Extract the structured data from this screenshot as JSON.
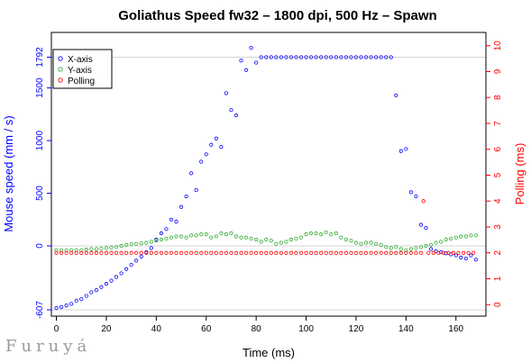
{
  "watermark": "Furuyá",
  "chart_data": {
    "type": "scatter",
    "title": "Goliathus Speed fw32 – 1800 dpi, 500 Hz – Spawn",
    "xlabel": "Time (ms)",
    "ylabel": "Mouse speed (mm / s)",
    "y2label": "Polling (ms)",
    "xlim": [
      -2,
      172
    ],
    "ylim": [
      -607,
      1950
    ],
    "y2lim": [
      -0.2,
      10.2
    ],
    "x_ticks": [
      0,
      20,
      40,
      60,
      80,
      100,
      120,
      140,
      160
    ],
    "y_ticks": [
      -607,
      0,
      500,
      1000,
      1500,
      1792
    ],
    "y2_ticks": [
      0,
      1,
      2,
      3,
      4,
      5,
      6,
      7,
      8,
      9,
      10
    ],
    "reference_lines_y": [
      -607,
      0,
      1792
    ],
    "grid": false,
    "legend_position": "top-left",
    "colors": {
      "x_axis": "#0000ff",
      "y_axis": "#33aa33",
      "polling": "#ff0000",
      "left_axis": "#0000ff",
      "right_axis": "#ff0000"
    },
    "series": [
      {
        "name": "X-axis",
        "axis": "left",
        "x": [
          0,
          2,
          4,
          6,
          8,
          10,
          12,
          14,
          16,
          18,
          20,
          22,
          24,
          26,
          28,
          30,
          32,
          34,
          36,
          38,
          40,
          42,
          44,
          46,
          48,
          50,
          52,
          54,
          56,
          58,
          60,
          62,
          64,
          66,
          68,
          70,
          72,
          74,
          76,
          78,
          80,
          82,
          84,
          86,
          88,
          90,
          92,
          94,
          96,
          98,
          100,
          102,
          104,
          106,
          108,
          110,
          112,
          114,
          116,
          118,
          120,
          122,
          124,
          126,
          128,
          130,
          132,
          134,
          136,
          138,
          140,
          142,
          144,
          146,
          148,
          150,
          152,
          154,
          156,
          158,
          160,
          162,
          164,
          166,
          168
        ],
        "y": [
          -590,
          -580,
          -565,
          -550,
          -520,
          -505,
          -475,
          -440,
          -420,
          -390,
          -360,
          -330,
          -295,
          -260,
          -220,
          -180,
          -140,
          -100,
          -60,
          -20,
          60,
          120,
          160,
          250,
          230,
          370,
          470,
          690,
          530,
          800,
          870,
          960,
          1020,
          940,
          1450,
          1290,
          1240,
          1760,
          1670,
          1880,
          1740,
          1792,
          1792,
          1792,
          1792,
          1792,
          1792,
          1792,
          1792,
          1792,
          1792,
          1792,
          1792,
          1792,
          1792,
          1792,
          1792,
          1792,
          1792,
          1792,
          1792,
          1792,
          1792,
          1792,
          1792,
          1792,
          1792,
          1792,
          1430,
          900,
          920,
          510,
          470,
          200,
          170,
          -30,
          -50,
          -60,
          -70,
          -80,
          -90,
          -110,
          -120,
          -90,
          -130
        ]
      },
      {
        "name": "Y-axis",
        "axis": "left",
        "x": [
          0,
          2,
          4,
          6,
          8,
          10,
          12,
          14,
          16,
          18,
          20,
          22,
          24,
          26,
          28,
          30,
          32,
          34,
          36,
          38,
          40,
          42,
          44,
          46,
          48,
          50,
          52,
          54,
          56,
          58,
          60,
          62,
          64,
          66,
          68,
          70,
          72,
          74,
          76,
          78,
          80,
          82,
          84,
          86,
          88,
          90,
          92,
          94,
          96,
          98,
          100,
          102,
          104,
          106,
          108,
          110,
          112,
          114,
          116,
          118,
          120,
          122,
          124,
          126,
          128,
          130,
          132,
          134,
          136,
          138,
          140,
          142,
          144,
          146,
          148,
          150,
          152,
          154,
          156,
          158,
          160,
          162,
          164,
          166,
          168
        ],
        "y": [
          -40,
          -40,
          -40,
          -40,
          -40,
          -40,
          -35,
          -30,
          -30,
          -25,
          -20,
          -15,
          -10,
          0,
          10,
          15,
          20,
          25,
          30,
          40,
          50,
          60,
          70,
          80,
          90,
          90,
          80,
          100,
          100,
          110,
          110,
          80,
          90,
          120,
          110,
          120,
          90,
          80,
          80,
          70,
          60,
          40,
          60,
          50,
          20,
          30,
          40,
          60,
          70,
          80,
          110,
          120,
          120,
          110,
          130,
          110,
          120,
          80,
          60,
          50,
          30,
          20,
          30,
          30,
          20,
          10,
          -10,
          -20,
          -10,
          -30,
          -40,
          -30,
          -20,
          -10,
          0,
          10,
          30,
          40,
          60,
          70,
          80,
          90,
          90,
          100,
          100
        ]
      },
      {
        "name": "Polling",
        "axis": "right",
        "x": [
          0,
          2,
          4,
          6,
          8,
          10,
          12,
          14,
          16,
          18,
          20,
          22,
          24,
          26,
          28,
          30,
          32,
          34,
          36,
          38,
          40,
          42,
          44,
          46,
          48,
          50,
          52,
          54,
          56,
          58,
          60,
          62,
          64,
          66,
          68,
          70,
          72,
          74,
          76,
          78,
          80,
          82,
          84,
          86,
          88,
          90,
          92,
          94,
          96,
          98,
          100,
          102,
          104,
          106,
          108,
          110,
          112,
          114,
          116,
          118,
          120,
          122,
          124,
          126,
          128,
          130,
          132,
          134,
          136,
          138,
          140,
          142,
          144,
          146,
          147,
          149,
          151,
          153,
          155,
          157,
          159,
          161,
          163,
          165,
          167
        ],
        "y": [
          2,
          2,
          2,
          2,
          2,
          2,
          2,
          2,
          2,
          2,
          2,
          2,
          2,
          2,
          2,
          2,
          2,
          2,
          2,
          2,
          2,
          2,
          2,
          2,
          2,
          2,
          2,
          2,
          2,
          2,
          2,
          2,
          2,
          2,
          2,
          2,
          2,
          2,
          2,
          2,
          2,
          2,
          2,
          2,
          2,
          2,
          2,
          2,
          2,
          2,
          2,
          2,
          2,
          2,
          2,
          2,
          2,
          2,
          2,
          2,
          2,
          2,
          2,
          2,
          2,
          2,
          2,
          2,
          2,
          2,
          2,
          2,
          2,
          2,
          4,
          2,
          2,
          2,
          2,
          2,
          2,
          2,
          2,
          2,
          2
        ]
      }
    ]
  }
}
